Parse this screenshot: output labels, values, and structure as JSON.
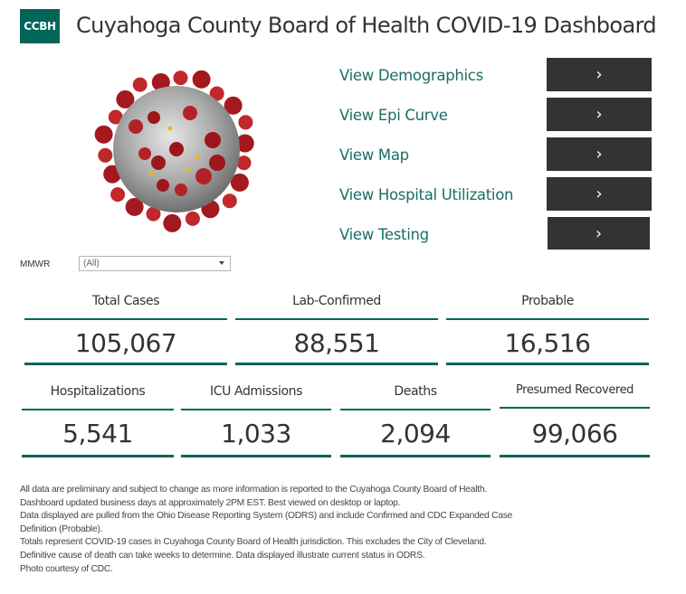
{
  "header": {
    "logo_text": "CCBH",
    "title": "Cuyahoga County Board of Health COVID-19 Dashboard"
  },
  "colors": {
    "brand": "#00665a",
    "link": "#1b6e62",
    "button": "#333333"
  },
  "nav": [
    {
      "label": "View Demographics",
      "button": "›"
    },
    {
      "label": "View Epi Curve",
      "button": "›"
    },
    {
      "label": "View Map",
      "button": "›"
    },
    {
      "label": "View Hospital Utilization",
      "button": "›"
    },
    {
      "label": "View Testing",
      "button": "›"
    }
  ],
  "filter": {
    "label": "MMWR",
    "value": "(All)"
  },
  "kpis_row1": [
    {
      "label": "Total  Cases",
      "value": "105,067"
    },
    {
      "label": "Lab-Confirmed",
      "value": "88,551"
    },
    {
      "label": "Probable",
      "value": "16,516"
    }
  ],
  "kpis_row2": [
    {
      "label": "Hospitalizations",
      "value": "5,541"
    },
    {
      "label": "ICU Admissions",
      "value": "1,033"
    },
    {
      "label": "Deaths",
      "value": "2,094"
    },
    {
      "label": "Presumed Recovered",
      "value": "99,066"
    }
  ],
  "footer": [
    "All data are preliminary and subject to change as more information is reported to the Cuyahoga County Board of Health.",
    "Dashboard updated business days at approximately 2PM EST. Best viewed on desktop or laptop.",
    "Data displayed are pulled from the Ohio Disease Reporting System (ODRS) and include Confirmed and CDC Expanded Case",
    "Definition (Probable).",
    "Totals represent COVID-19 cases in Cuyahoga County Board of Health jurisdiction. This excludes the City of Cleveland.",
    "Definitive cause of death can take weeks to determine. Data displayed illustrate current status in ODRS.",
    "Photo courtesy of CDC."
  ]
}
